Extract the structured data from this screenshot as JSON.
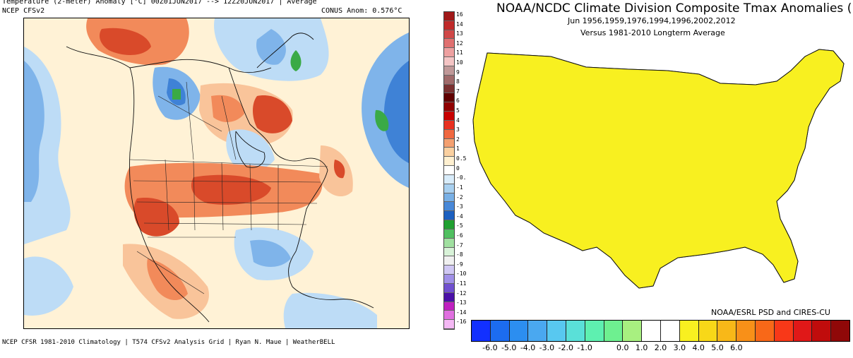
{
  "left_panel": {
    "title": "Temperature (2-meter) Anomaly  [°C] 00Z01JUN2017 --> 12Z20JUN2017 | Average",
    "source": "NCEP CFSv2",
    "anomaly": "CONUS Anom: 0.576°C",
    "credit": "NCEP CFSR 1981-2010 Climatology | T574 CFSv2 Analysis Grid | Ryan N. Maue | WeatherBELL",
    "scale_labels": [
      "16",
      "14",
      "13",
      "12",
      "11",
      "10",
      "9",
      "8",
      "7",
      "6",
      "5",
      "4",
      "3",
      "2",
      "1",
      "0.5",
      "0",
      "-0.",
      "-1",
      "-2",
      "-3",
      "-4",
      "-5",
      "-6",
      "-7",
      "-8",
      "-9",
      "-10",
      "-11",
      "-12",
      "-13",
      "-14",
      "-16"
    ],
    "scale_colors": [
      "#a01818",
      "#c02a2a",
      "#d04848",
      "#e07070",
      "#eea0a0",
      "#f4c4c4",
      "#c09898",
      "#a06a6a",
      "#7a3030",
      "#600000",
      "#900000",
      "#c80000",
      "#e83020",
      "#f06840",
      "#f4a070",
      "#fad0a0",
      "#fff0d0",
      "#ffffff",
      "#d8ecfa",
      "#a8d0f0",
      "#78b0e6",
      "#4888d8",
      "#1c60c0",
      "#20a030",
      "#50c060",
      "#a0e0a0",
      "#d8f2d8",
      "#f0f0f0",
      "#d0c8f4",
      "#a090e8",
      "#7050d0",
      "#4a10a8",
      "#c020c0",
      "#e070e0",
      "#f4b8f4"
    ],
    "map_palette": {
      "warm_strong": "#d94a2a",
      "warm": "#f28a5a",
      "warm_light": "#f9c49a",
      "neutral": "#fff2d6",
      "cool_light": "#bddcf6",
      "cool": "#7fb4ea",
      "cool_strong": "#3f82d6",
      "green": "#3aaa46"
    }
  },
  "right_panel": {
    "title": "NOAA/NCDC Climate Division Composite Tmax Anomalies (F)",
    "subtitle1": "Jun   1956,1959,1976,1994,1996,2002,2012",
    "subtitle2": "Versus 1981-2010 Longterm Average",
    "credit": "NOAA/ESRL PSD and CIRES-CU",
    "colorbar_colors": [
      "#1230ff",
      "#1c6cf0",
      "#2c8ef0",
      "#4aa8f0",
      "#58c8f0",
      "#5ae0d8",
      "#5ef0b0",
      "#6ef090",
      "#a8f080",
      "#ffffff",
      "#ffffff",
      "#f8f020",
      "#f8d818",
      "#f8b818",
      "#f89018",
      "#f86818",
      "#f83818",
      "#e01818",
      "#c00c0c",
      "#900808"
    ],
    "colorbar_ticks": [
      "-6.0",
      "-5.0",
      "-4.0",
      "-3.0",
      "-2.0",
      "-1.0",
      "0.0",
      "1.0",
      "2.0",
      "3.0",
      "4.0",
      "5.0",
      "6.0"
    ],
    "map_palette": {
      "dark_red": "#c81818",
      "red": "#f03020",
      "red_orange": "#f86818",
      "orange": "#f89018",
      "light_orange": "#f8b818",
      "gold": "#f8d818",
      "yellow": "#f8f020",
      "white": "#ffffff",
      "light_green": "#a8f080",
      "green": "#6ef090",
      "teal": "#5ef0b0"
    }
  }
}
